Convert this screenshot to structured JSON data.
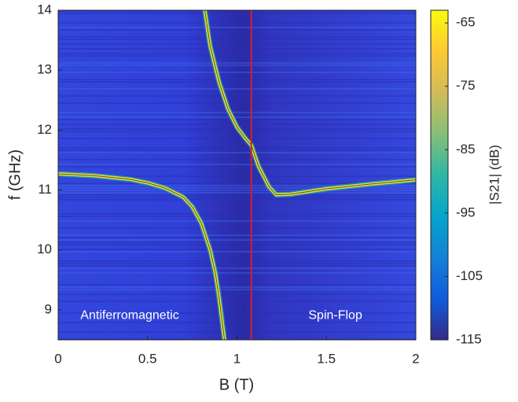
{
  "chart_data": {
    "type": "heatmap",
    "xlabel": "B (T)",
    "ylabel": "f (GHz)",
    "xlim": [
      0,
      2
    ],
    "xticks": [
      0,
      0.5,
      1,
      1.5,
      2
    ],
    "ylim": [
      8.5,
      14
    ],
    "yticks": [
      9,
      10,
      11,
      12,
      13,
      14
    ],
    "series": [
      {
        "color": "#e6e23a",
        "x": [
          0,
          0.2,
          0.4,
          0.5,
          0.6,
          0.7,
          0.75,
          0.8,
          0.85,
          0.88,
          0.9,
          0.93
        ],
        "values": [
          11.27,
          11.24,
          11.18,
          11.12,
          11.03,
          10.88,
          10.72,
          10.45,
          10.0,
          9.6,
          9.2,
          8.5
        ]
      },
      {
        "color": "#e6e23a",
        "x": [
          0.82,
          0.85,
          0.9,
          0.95,
          1.0,
          1.05,
          1.08,
          1.12,
          1.18,
          1.22,
          1.3,
          1.5,
          1.75,
          2
        ],
        "values": [
          14,
          13.4,
          12.8,
          12.35,
          12.05,
          11.85,
          11.75,
          11.4,
          11.05,
          10.92,
          10.93,
          11.02,
          11.1,
          11.17
        ]
      }
    ],
    "vline": {
      "x": 1.08,
      "color": "#d0202a"
    },
    "annotations": [
      {
        "text": "Antiferromagnetic",
        "x": 0.4,
        "y": 8.9
      },
      {
        "text": "Spin-Flop",
        "x": 1.55,
        "y": 8.9
      }
    ],
    "colorbar": {
      "label": "|S21| (dB)",
      "lim": [
        -115,
        -63
      ],
      "ticks": [
        -115,
        -105,
        -95,
        -85,
        -75,
        -65
      ],
      "colors": [
        "#352a87",
        "#0f5cdd",
        "#1481d6",
        "#06a4ca",
        "#2eb7a4",
        "#87bf77",
        "#d1bb59",
        "#fec832",
        "#f9fb0e"
      ]
    }
  }
}
